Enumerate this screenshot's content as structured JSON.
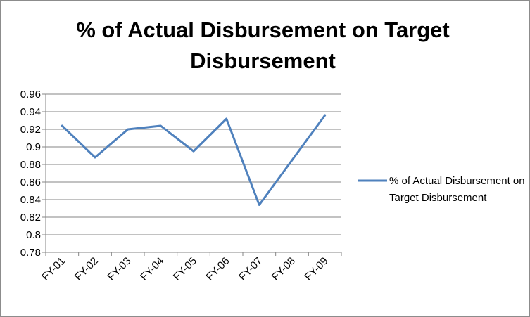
{
  "chart_data": {
    "type": "line",
    "title": "% of Actual Disbursement on Target Disbursement",
    "xlabel": "",
    "ylabel": "",
    "categories": [
      "FY-01",
      "FY-02",
      "FY-03",
      "FY-04",
      "FY-05",
      "FY-06",
      "FY-07",
      "FY-08",
      "FY-09"
    ],
    "series": [
      {
        "name": "% of Actual Disbursement on Target Disbursement",
        "values": [
          0.924,
          0.888,
          0.92,
          0.924,
          0.895,
          0.932,
          0.834,
          0.885,
          0.936
        ],
        "color": "#4f81bd"
      }
    ],
    "ylim": [
      0.78,
      0.96
    ],
    "yticks": [
      "0.96",
      "0.94",
      "0.92",
      "0.9",
      "0.88",
      "0.86",
      "0.84",
      "0.82",
      "0.8",
      "0.78"
    ],
    "grid": true,
    "legend": "right"
  }
}
